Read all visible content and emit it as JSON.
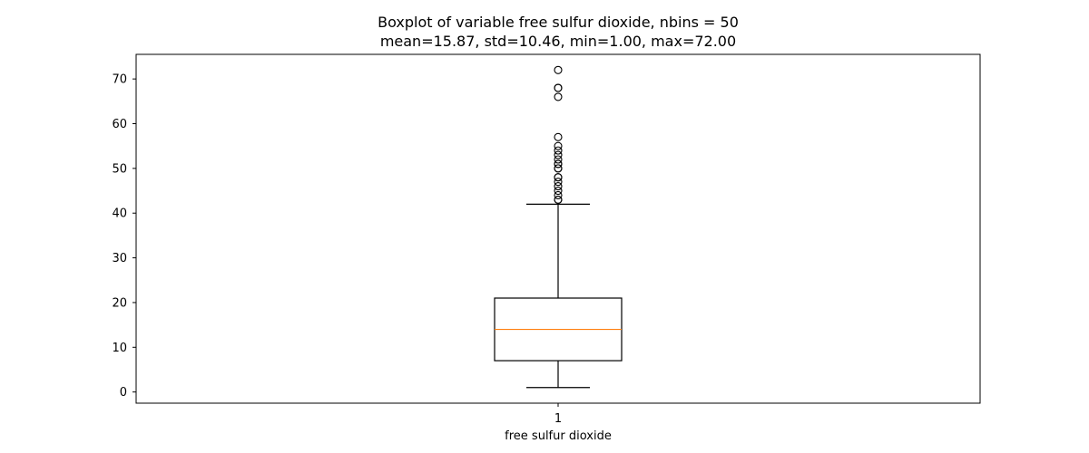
{
  "chart_data": {
    "type": "boxplot",
    "title": "Boxplot of variable free sulfur dioxide, nbins = 50",
    "subtitle": "mean=15.87, std=10.46, min=1.00, max=72.00",
    "xlabel": "free sulfur dioxide",
    "ylabel": "",
    "categories": [
      "1"
    ],
    "ylim": [
      -2.5,
      75.5
    ],
    "yticks": [
      0,
      10,
      20,
      30,
      40,
      50,
      60,
      70
    ],
    "grid": false,
    "box": {
      "whisker_low": 1,
      "q1": 7,
      "median": 14,
      "q3": 21,
      "whisker_high": 42
    },
    "outliers": [
      43,
      43,
      44,
      45,
      46,
      47,
      48,
      48,
      50,
      50,
      51,
      51,
      52,
      53,
      54,
      55,
      57,
      66,
      68,
      68,
      72
    ],
    "colors": {
      "box": "#000000",
      "median": "#ff7f0e",
      "outlier": "#000000"
    }
  }
}
